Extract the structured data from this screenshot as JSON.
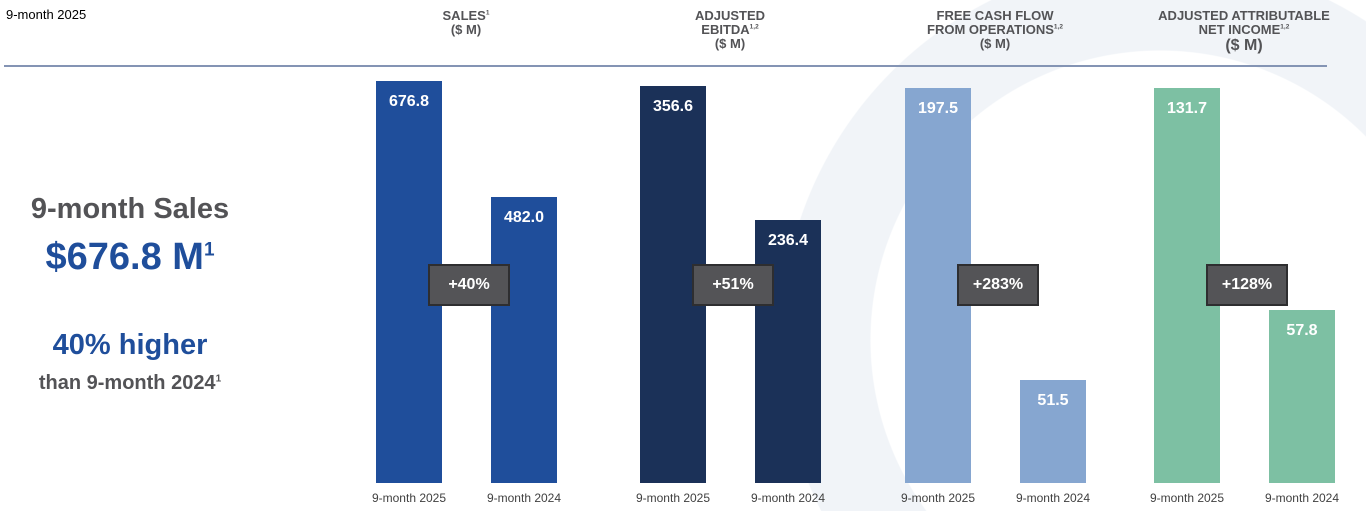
{
  "corner_label": "9-month 2025",
  "summary": {
    "line1": "9-month Sales",
    "line2": "$676.8 M",
    "line2_sup": "1",
    "line3": "40% higher",
    "line4": "than 9-month 2024",
    "line4_sup": "1"
  },
  "chart_data": [
    {
      "type": "bar",
      "title_lines": [
        "SALES",
        "($ M)"
      ],
      "title_sup": "1",
      "categories": [
        "9-month 2025",
        "9-month 2024"
      ],
      "values": [
        676.8,
        482.0
      ],
      "value_labels": [
        "676.8",
        "482.0"
      ],
      "change": "+40%",
      "color": "#1f4e9b"
    },
    {
      "type": "bar",
      "title_lines": [
        "ADJUSTED",
        "EBITDA",
        "($ M)"
      ],
      "title_sup": "1,2",
      "categories": [
        "9-month 2025",
        "9-month 2024"
      ],
      "values": [
        356.6,
        236.4
      ],
      "value_labels": [
        "356.6",
        "236.4"
      ],
      "change": "+51%",
      "color": "#1b3158"
    },
    {
      "type": "bar",
      "title_lines": [
        "FREE CASH FLOW",
        "FROM OPERATIONS",
        "($ M)"
      ],
      "title_sup": "1,2",
      "categories": [
        "9-month 2025",
        "9-month 2024"
      ],
      "values": [
        197.5,
        51.5
      ],
      "value_labels": [
        "197.5",
        "51.5"
      ],
      "change": "+283%",
      "color": "#86a6d0"
    },
    {
      "type": "bar",
      "title_lines": [
        "ADJUSTED ATTRIBUTABLE",
        "NET INCOME",
        "($ M)"
      ],
      "title_sup": "1,2",
      "categories": [
        "9-month 2025",
        "9-month 2024"
      ],
      "values": [
        131.7,
        57.8
      ],
      "value_labels": [
        "131.7",
        "57.8"
      ],
      "change": "+128%",
      "color": "#7dc0a3"
    }
  ]
}
